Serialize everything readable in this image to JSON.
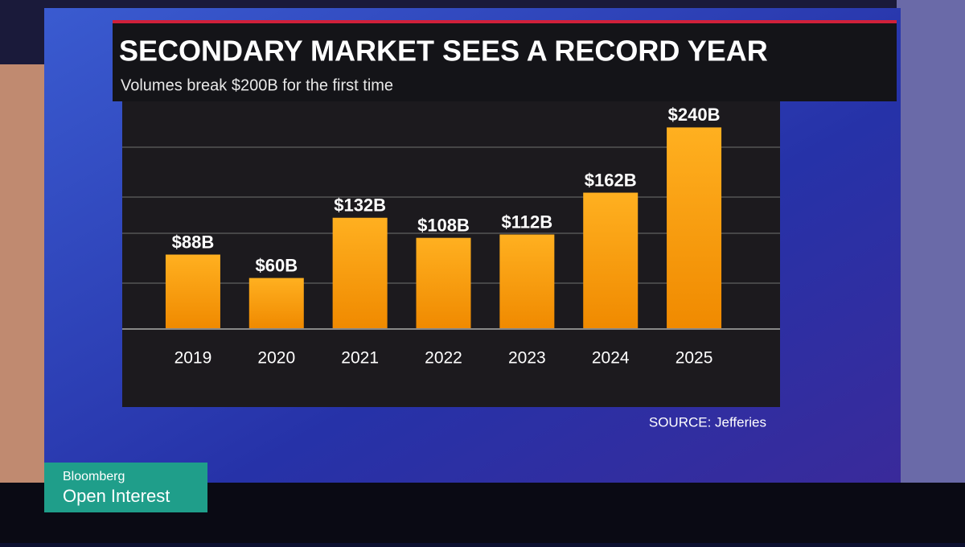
{
  "chart_data": {
    "type": "bar",
    "title": "SECONDARY MARKET SEES A RECORD YEAR",
    "subtitle": "Volumes break $200B for the first time",
    "categories": [
      "2019",
      "2020",
      "2021",
      "2022",
      "2023",
      "2024",
      "2025"
    ],
    "values": [
      88,
      60,
      132,
      108,
      112,
      162,
      240
    ],
    "value_labels": [
      "$88B",
      "$60B",
      "$132B",
      "$108B",
      "$112B",
      "$162B",
      "$240B"
    ],
    "color": "#f5a010",
    "ylim": [
      0,
      250
    ],
    "source": "SOURCE: Jefferies"
  },
  "overlay": {
    "brand": "Bloomberg",
    "show": "Open Interest"
  }
}
